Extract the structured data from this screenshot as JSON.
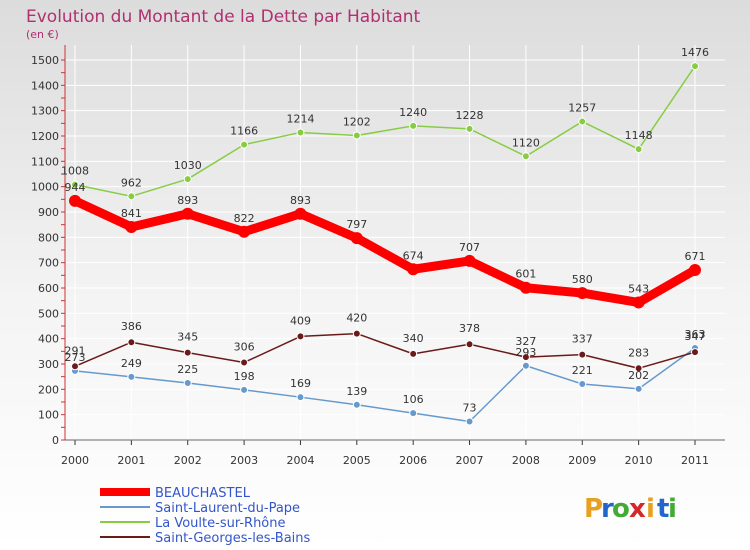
{
  "chart_data": {
    "type": "line",
    "title": "Evolution du Montant de la Dette par Habitant",
    "subtitle": "(en €)",
    "x": [
      "2000",
      "2001",
      "2002",
      "2003",
      "2004",
      "2005",
      "2006",
      "2007",
      "2008",
      "2009",
      "2010",
      "2011"
    ],
    "ylim": [
      0,
      1500
    ],
    "yticks": [
      0,
      100,
      200,
      300,
      400,
      500,
      600,
      700,
      800,
      900,
      1000,
      1100,
      1200,
      1300,
      1400,
      1500
    ],
    "grid": true,
    "legend_position": "bottom-left",
    "series": [
      {
        "name": "BEAUCHASTEL",
        "color": "#ff0000",
        "values": [
          944,
          841,
          893,
          822,
          893,
          797,
          674,
          707,
          601,
          580,
          543,
          671
        ]
      },
      {
        "name": "Saint-Laurent-du-Pape",
        "color": "#6699cc",
        "values": [
          273,
          249,
          225,
          198,
          169,
          139,
          106,
          73,
          293,
          221,
          202,
          363
        ]
      },
      {
        "name": "La Voulte-sur-Rhône",
        "color": "#88cc44",
        "values": [
          1008,
          962,
          1030,
          1166,
          1214,
          1202,
          1240,
          1228,
          1120,
          1257,
          1148,
          1476
        ]
      },
      {
        "name": "Saint-Georges-les-Bains",
        "color": "#6b1a1a",
        "values": [
          291,
          386,
          345,
          306,
          409,
          420,
          340,
          378,
          327,
          337,
          283,
          347
        ]
      }
    ]
  },
  "logo": {
    "text": "Proxiti",
    "letters": [
      "P",
      "r",
      "o",
      "x",
      "i",
      "t",
      "i"
    ]
  }
}
